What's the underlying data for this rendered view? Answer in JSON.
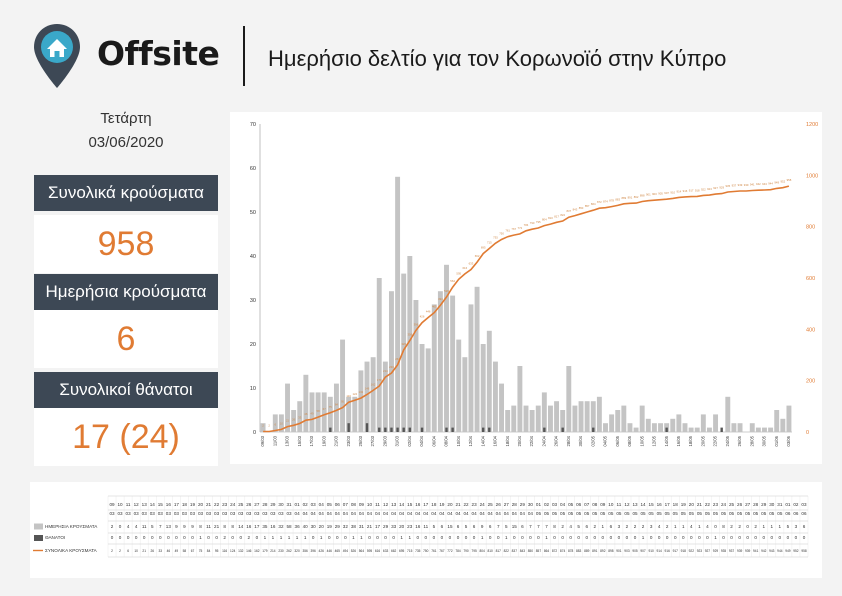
{
  "header": {
    "brand": "Offsite",
    "title": "Ημερήσιο δελτίο για τον Κορωνοϊό στην Κύπρο"
  },
  "date": {
    "day": "Τετάρτη",
    "full": "03/06/2020"
  },
  "stats": [
    {
      "label": "Συνολικά κρούσματα",
      "value": "958"
    },
    {
      "label": "Ημερήσια κρούσματα",
      "value": "6"
    },
    {
      "label": "Συνολικοί θάνατοι",
      "value": "17 (24)"
    }
  ],
  "colors": {
    "bars": "#c4c4c4",
    "deaths": "#555555",
    "line": "#e07b33",
    "stat_header": "#3d4855"
  },
  "chart_data": {
    "type": "bar",
    "x": [
      "09/03",
      "10/03",
      "11/03",
      "12/03",
      "13/03",
      "14/03",
      "15/03",
      "16/03",
      "17/03",
      "18/03",
      "19/03",
      "20/03",
      "21/03",
      "22/03",
      "23/03",
      "24/03",
      "25/03",
      "26/03",
      "27/03",
      "28/03",
      "29/03",
      "30/03",
      "31/03",
      "01/04",
      "02/04",
      "03/04",
      "04/04",
      "05/04",
      "06/04",
      "07/04",
      "08/04",
      "09/04",
      "10/04",
      "11/04",
      "12/04",
      "13/04",
      "14/04",
      "15/04",
      "16/04",
      "17/04",
      "18/04",
      "19/04",
      "20/04",
      "21/04",
      "22/04",
      "23/04",
      "24/04",
      "25/04",
      "26/04",
      "27/04",
      "28/04",
      "29/04",
      "30/04",
      "01/05",
      "02/05",
      "03/05",
      "04/05",
      "05/05",
      "06/05",
      "07/05",
      "08/05",
      "09/05",
      "10/05",
      "11/05",
      "12/05",
      "13/05",
      "14/05",
      "15/05",
      "16/05",
      "17/05",
      "18/05",
      "19/05",
      "20/05",
      "21/05",
      "22/05",
      "23/05",
      "24/05",
      "25/05",
      "26/05",
      "27/05",
      "28/05",
      "29/05",
      "30/05",
      "31/05",
      "01/06",
      "02/06",
      "03/06"
    ],
    "series": [
      {
        "name": "ΗΜΕΡΗΣΙΑ ΚΡΟΥΣΜΑΤΑ",
        "axis": "left",
        "values": [
          2,
          0,
          4,
          4,
          11,
          5,
          7,
          13,
          9,
          9,
          9,
          8,
          11,
          21,
          8,
          8,
          14,
          16,
          17,
          35,
          16,
          32,
          58,
          36,
          40,
          30,
          20,
          19,
          29,
          32,
          38,
          31,
          21,
          17,
          29,
          33,
          20,
          23,
          16,
          11,
          5,
          6,
          15,
          6,
          5,
          6,
          9,
          6,
          7,
          5,
          15,
          6,
          7,
          7,
          7,
          8,
          2,
          4,
          5,
          6,
          2,
          1,
          6,
          3,
          2,
          2,
          2,
          3,
          4,
          2,
          1,
          1,
          4,
          1,
          4,
          0,
          8,
          2,
          2,
          0,
          2,
          1,
          1,
          1,
          5,
          3,
          6
        ]
      },
      {
        "name": "ΘΑΝΑΤΟΙ",
        "axis": "left",
        "values": [
          0,
          0,
          0,
          0,
          0,
          0,
          0,
          0,
          0,
          0,
          0,
          1,
          0,
          0,
          2,
          0,
          0,
          2,
          0,
          1,
          1,
          1,
          1,
          1,
          1,
          0,
          1,
          0,
          0,
          0,
          1,
          1,
          0,
          0,
          0,
          0,
          1,
          1,
          0,
          0,
          0,
          0,
          0,
          0,
          0,
          0,
          1,
          0,
          0,
          1,
          0,
          0,
          0,
          0,
          1,
          0,
          0,
          0,
          0,
          0,
          0,
          0,
          0,
          0,
          0,
          0,
          1,
          0,
          0,
          0,
          0,
          0,
          0,
          0,
          0,
          1,
          0,
          0,
          0,
          0,
          0,
          0,
          0,
          0,
          0,
          0,
          0
        ]
      },
      {
        "name": "ΣΥΝΟΛΙΚΑ ΚΡΟΥΣΜΑΤΑ",
        "axis": "right",
        "type": "line",
        "values": [
          2,
          2,
          6,
          10,
          21,
          26,
          33,
          46,
          49,
          58,
          67,
          75,
          84,
          95,
          116,
          124,
          132,
          146,
          162,
          179,
          214,
          230,
          262,
          320,
          356,
          396,
          426,
          446,
          465,
          494,
          526,
          564,
          595,
          616,
          633,
          662,
          695,
          715,
          735,
          750,
          761,
          767,
          772,
          784,
          790,
          795,
          804,
          810,
          817,
          822,
          837,
          843,
          850,
          857,
          864,
          872,
          874,
          878,
          883,
          889,
          891,
          892,
          898,
          901,
          903,
          905,
          907,
          910,
          914,
          916,
          917,
          918,
          922,
          923,
          927,
          929,
          935,
          937,
          939,
          939,
          941,
          942,
          943,
          944,
          949,
          952,
          958
        ]
      }
    ],
    "y_left_ticks": [
      "0",
      "10",
      "20",
      "30",
      "40",
      "50",
      "60",
      "70"
    ],
    "y_right_ticks": [
      "0",
      "200",
      "400",
      "600",
      "800",
      "1000",
      "1200"
    ],
    "ylim_left": [
      0,
      70
    ],
    "ylim_right": [
      0,
      1200
    ]
  }
}
